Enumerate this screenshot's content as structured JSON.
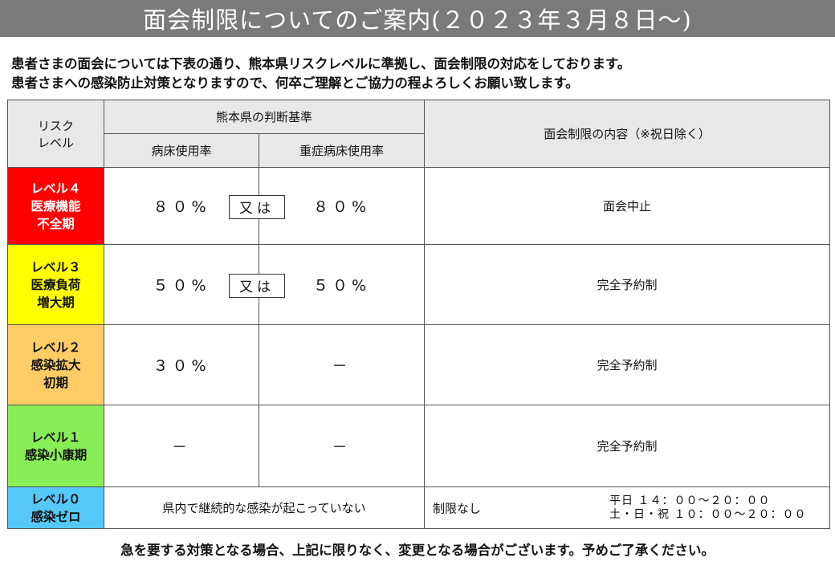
{
  "title": "面会制限についてのご案内(２０２３年３月８日～)",
  "intro": {
    "line1": "患者さまの面会については下表の通り、熊本県リスクレベルに準拠し、面会制限の対応をしております。",
    "line2": "患者さまへの感染防止対策となりますので、何卒ご理解とご協力の程よろしくお願い致します。"
  },
  "table": {
    "headers": {
      "risk_line1": "リスク",
      "risk_line2": "レベル",
      "criteria": "熊本県の判断基準",
      "bed_rate": "病床使用率",
      "severe_bed_rate": "重症病床使用率",
      "restriction": "面会制限の内容（※祝日除く）"
    },
    "rows": [
      {
        "level_line1": "レベル４",
        "level_line2": "医療機能",
        "level_line3": "不全期",
        "bed": "８０%",
        "or": "又は",
        "severe": "８０%",
        "content": "面会中止",
        "color": "#ff0000"
      },
      {
        "level_line1": "レベル３",
        "level_line2": "医療負荷",
        "level_line3": "増大期",
        "bed": "５０%",
        "or": "又は",
        "severe": "５０%",
        "content": "完全予約制",
        "color": "#ffff00"
      },
      {
        "level_line1": "レベル２",
        "level_line2": "感染拡大",
        "level_line3": "初期",
        "bed": "３０%",
        "severe": "－",
        "content": "完全予約制",
        "color": "#ffcc66"
      },
      {
        "level_line1": "レベル１",
        "level_line2": "感染小康期",
        "bed": "－",
        "severe": "－",
        "content": "完全予約制",
        "color": "#88ee55"
      },
      {
        "level_line1": "レベル０",
        "level_line2": "感染ゼロ",
        "criteria_text": "県内で継続的な感染が起こっていない",
        "content": "制限なし",
        "hours_weekday": "平日 １４：００～２０：００",
        "hours_weekend": "土・日・祝 １０：００～２０：００",
        "color": "#55c8f8"
      }
    ]
  },
  "footer": "急を要する対策となる場合、上記に限りなく、変更となる場合がございます。予めご了承ください。"
}
